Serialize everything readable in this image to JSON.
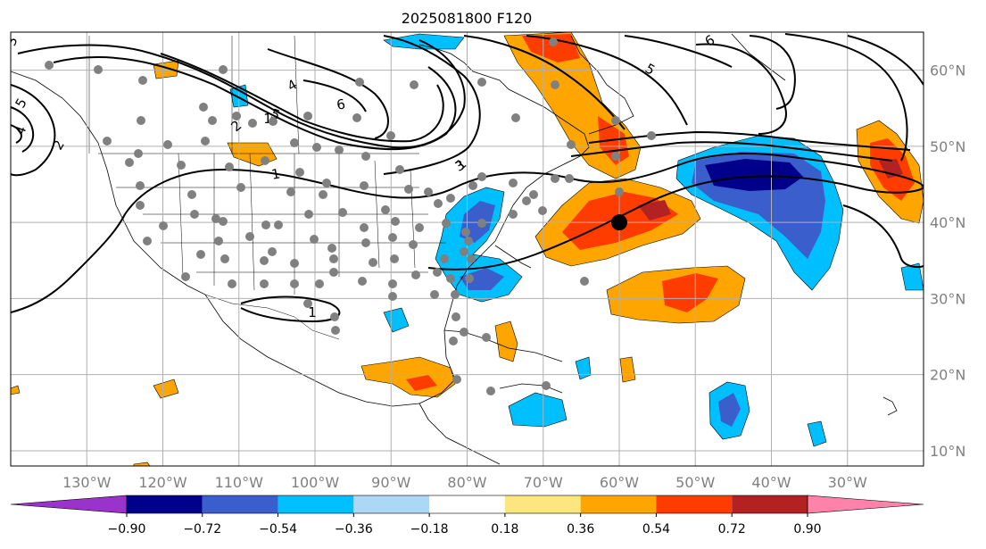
{
  "title": "2025081800 F120",
  "map": {
    "lon_range": [
      -140,
      -20
    ],
    "lat_range": [
      8,
      65
    ],
    "lon_ticks": [
      -130,
      -120,
      -110,
      -100,
      -90,
      -80,
      -70,
      -60,
      -50,
      -40,
      -30
    ],
    "lon_labels": [
      "130°W",
      "120°W",
      "110°W",
      "100°W",
      "90°W",
      "80°W",
      "70°W",
      "60°W",
      "50°W",
      "40°W",
      "30°W"
    ],
    "lat_ticks": [
      10,
      20,
      30,
      40,
      50,
      60
    ],
    "lat_labels": [
      "10°N",
      "20°N",
      "30°N",
      "40°N",
      "50°N",
      "60°N"
    ],
    "grid": true,
    "contour_labels": [
      "3",
      "5",
      "4",
      "2",
      "1",
      "4",
      "6",
      "5",
      "2",
      "1",
      "3",
      "6",
      "5",
      "1",
      "1"
    ],
    "highlight_point": {
      "lon": -60,
      "lat": 40
    }
  },
  "colorbar": {
    "levels": [
      "−0.90",
      "−0.72",
      "−0.54",
      "−0.36",
      "−0.18",
      "0.18",
      "0.36",
      "0.54",
      "0.72",
      "0.90"
    ],
    "colors": [
      "#9933cc",
      "#00008b",
      "#3a5fcd",
      "#00bfff",
      "#add8f5",
      "#ffffff",
      "#fce680",
      "#ffa500",
      "#ff3c00",
      "#b22222",
      "#ff82ab"
    ],
    "extend": "both"
  },
  "colors": {
    "contour": "#000000",
    "station": "#808080",
    "grid": "#b0b0b0",
    "coast": "#000000"
  }
}
